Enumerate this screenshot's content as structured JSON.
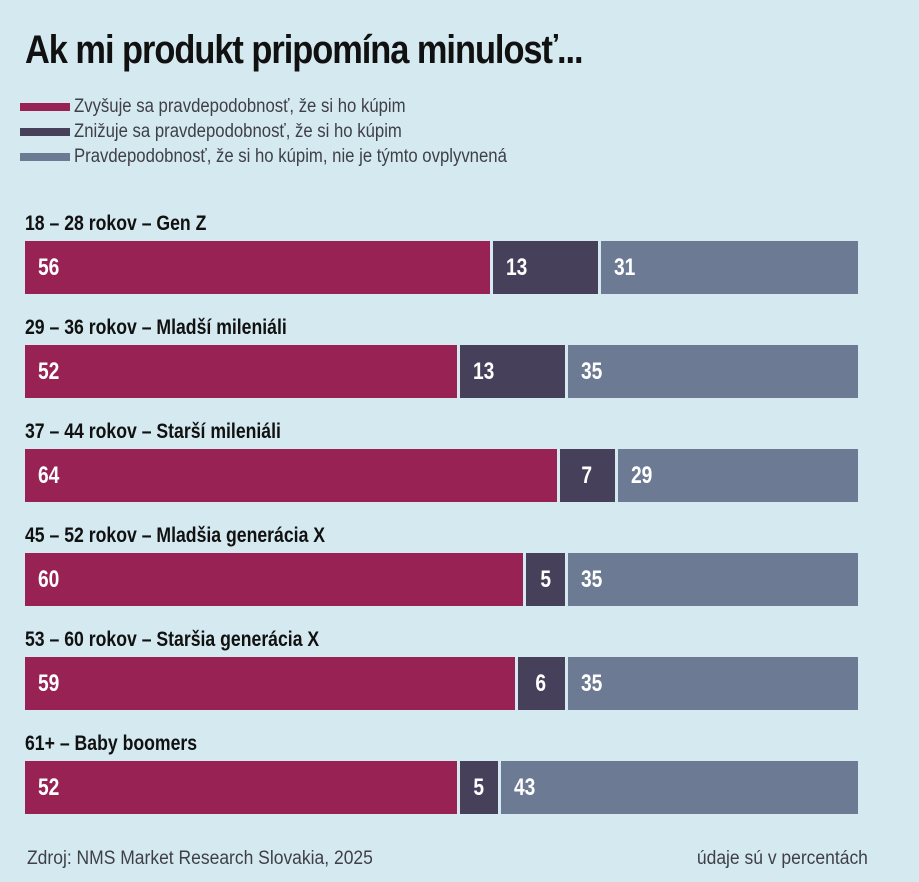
{
  "chart_data": {
    "type": "bar",
    "orientation": "horizontal",
    "stacked": true,
    "title": "Ak mi produkt pripomína minulosť...",
    "unit_note": "údaje sú v percentách",
    "source": "Zdroj: NMS Market Research Slovakia, 2025",
    "xlim": [
      0,
      100
    ],
    "legend_position": "top-left",
    "categories": [
      "18 – 28 rokov – Gen Z",
      "29 – 36 rokov – Mladší mileniáli",
      "37 – 44 rokov – Starší mileniáli",
      "45 – 52 rokov – Mladšia generácia X",
      "53 – 60 rokov – Staršia generácia X",
      "61+ – Baby boomers"
    ],
    "series": [
      {
        "name": "Zvyšuje sa pravdepodobnosť, že si ho kúpim",
        "color": "#982254",
        "values": [
          56,
          52,
          64,
          60,
          59,
          52
        ]
      },
      {
        "name": "Znižuje sa pravdepodobnosť, že si ho kúpim",
        "color": "#46405a",
        "values": [
          13,
          13,
          7,
          5,
          6,
          5
        ]
      },
      {
        "name": "Pravdepodobnosť, že si ho kúpim, nie je týmto ovplyvnená",
        "color": "#6c7a93",
        "values": [
          31,
          35,
          29,
          35,
          35,
          43
        ]
      }
    ]
  }
}
